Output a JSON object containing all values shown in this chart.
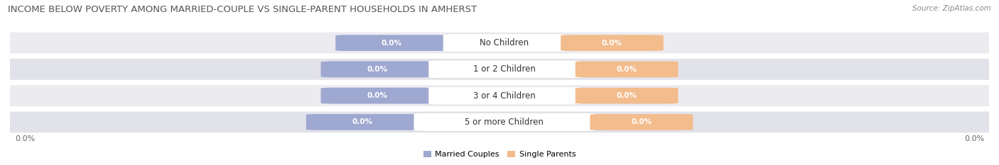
{
  "title": "INCOME BELOW POVERTY AMONG MARRIED-COUPLE VS SINGLE-PARENT HOUSEHOLDS IN AMHERST",
  "source": "Source: ZipAtlas.com",
  "categories": [
    "No Children",
    "1 or 2 Children",
    "3 or 4 Children",
    "5 or more Children"
  ],
  "married_values": [
    0.0,
    0.0,
    0.0,
    0.0
  ],
  "single_values": [
    0.0,
    0.0,
    0.0,
    0.0
  ],
  "married_color": "#9FA8D0",
  "single_color": "#F2BC8D",
  "row_bg_color": "#EBEBF0",
  "row_bg_color2": "#E2E2EA",
  "xlim_left": "0.0%",
  "xlim_right": "0.0%",
  "legend_married": "Married Couples",
  "legend_single": "Single Parents",
  "title_fontsize": 9.5,
  "source_fontsize": 7.5,
  "axis_label_fontsize": 8,
  "category_fontsize": 8.5,
  "value_fontsize": 7.5,
  "legend_fontsize": 8
}
